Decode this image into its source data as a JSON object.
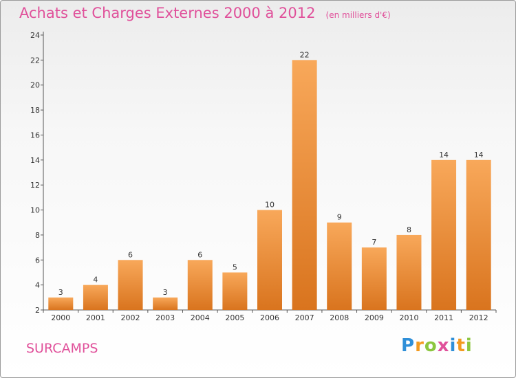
{
  "title": {
    "main": "Achats et Charges Externes 2000 à 2012",
    "unit": "(en milliers d'€)"
  },
  "commune": "SURCAMPS",
  "logo": {
    "text": "Proxiti",
    "letters": [
      {
        "ch": "P",
        "color": "#2f8fd8"
      },
      {
        "ch": "r",
        "color": "#f39a1f"
      },
      {
        "ch": "o",
        "color": "#8cc63f"
      },
      {
        "ch": "x",
        "color": "#e0509a"
      },
      {
        "ch": "i",
        "color": "#2f8fd8"
      },
      {
        "ch": "t",
        "color": "#f39a1f"
      },
      {
        "ch": "i",
        "color": "#8cc63f"
      }
    ]
  },
  "colors": {
    "bar_light": "#f8a85a",
    "bar_dark": "#d9741e",
    "title": "#e0509a",
    "axis": "#555555"
  },
  "chart_data": {
    "type": "bar",
    "categories": [
      "2000",
      "2001",
      "2002",
      "2003",
      "2004",
      "2005",
      "2006",
      "2007",
      "2008",
      "2009",
      "2010",
      "2011",
      "2012"
    ],
    "values": [
      3,
      4,
      6,
      3,
      6,
      5,
      10,
      22,
      9,
      7,
      8,
      14,
      14
    ],
    "ylim": [
      2,
      24
    ],
    "yticks": [
      2,
      4,
      6,
      8,
      10,
      12,
      14,
      16,
      18,
      20,
      22,
      24
    ],
    "grid": false,
    "legend": "none"
  }
}
